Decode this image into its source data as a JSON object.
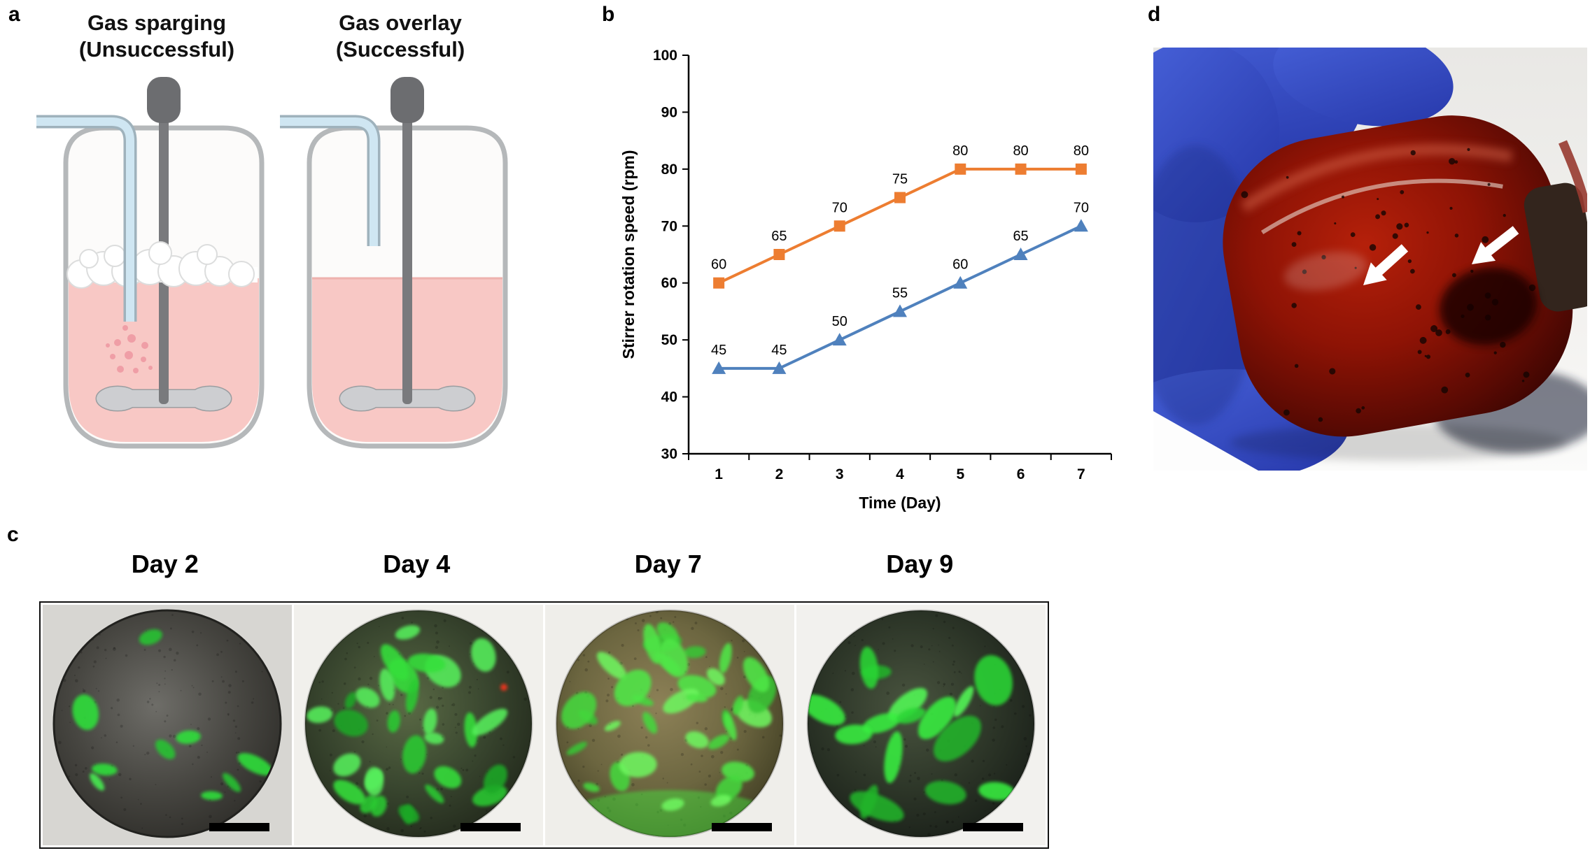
{
  "figure": {
    "background": "#ffffff",
    "panel_a": {
      "label": "a",
      "diagrams": [
        {
          "title_line1": "Gas sparging",
          "title_line2": "(Unsuccessful)",
          "type": "sparging"
        },
        {
          "title_line1": "Gas overlay",
          "title_line2": "(Successful)",
          "type": "overlay"
        }
      ]
    },
    "panel_b": {
      "label": "b"
    },
    "panel_c": {
      "label": "c",
      "images": [
        {
          "title": "Day 2"
        },
        {
          "title": "Day 4"
        },
        {
          "title": "Day 7"
        },
        {
          "title": "Day 9"
        }
      ]
    },
    "panel_d": {
      "label": "d"
    }
  },
  "chart_data": {
    "type": "line",
    "x": [
      1,
      2,
      3,
      4,
      5,
      6,
      7
    ],
    "xlabel": "Time (Day)",
    "ylabel": "Stirrer rotation speed (rpm)",
    "ylim": [
      30,
      100
    ],
    "yticks": [
      30,
      40,
      50,
      60,
      70,
      80,
      90,
      100
    ],
    "grid": false,
    "legend": "none",
    "data_labels": true,
    "series": [
      {
        "name": "orange-squares",
        "marker": "square",
        "color": "#ED7D31",
        "values": [
          60,
          65,
          70,
          75,
          80,
          80,
          80
        ]
      },
      {
        "name": "blue-triangles",
        "marker": "triangle",
        "color": "#4F81BD",
        "values": [
          45,
          45,
          50,
          55,
          60,
          65,
          70
        ]
      }
    ]
  }
}
